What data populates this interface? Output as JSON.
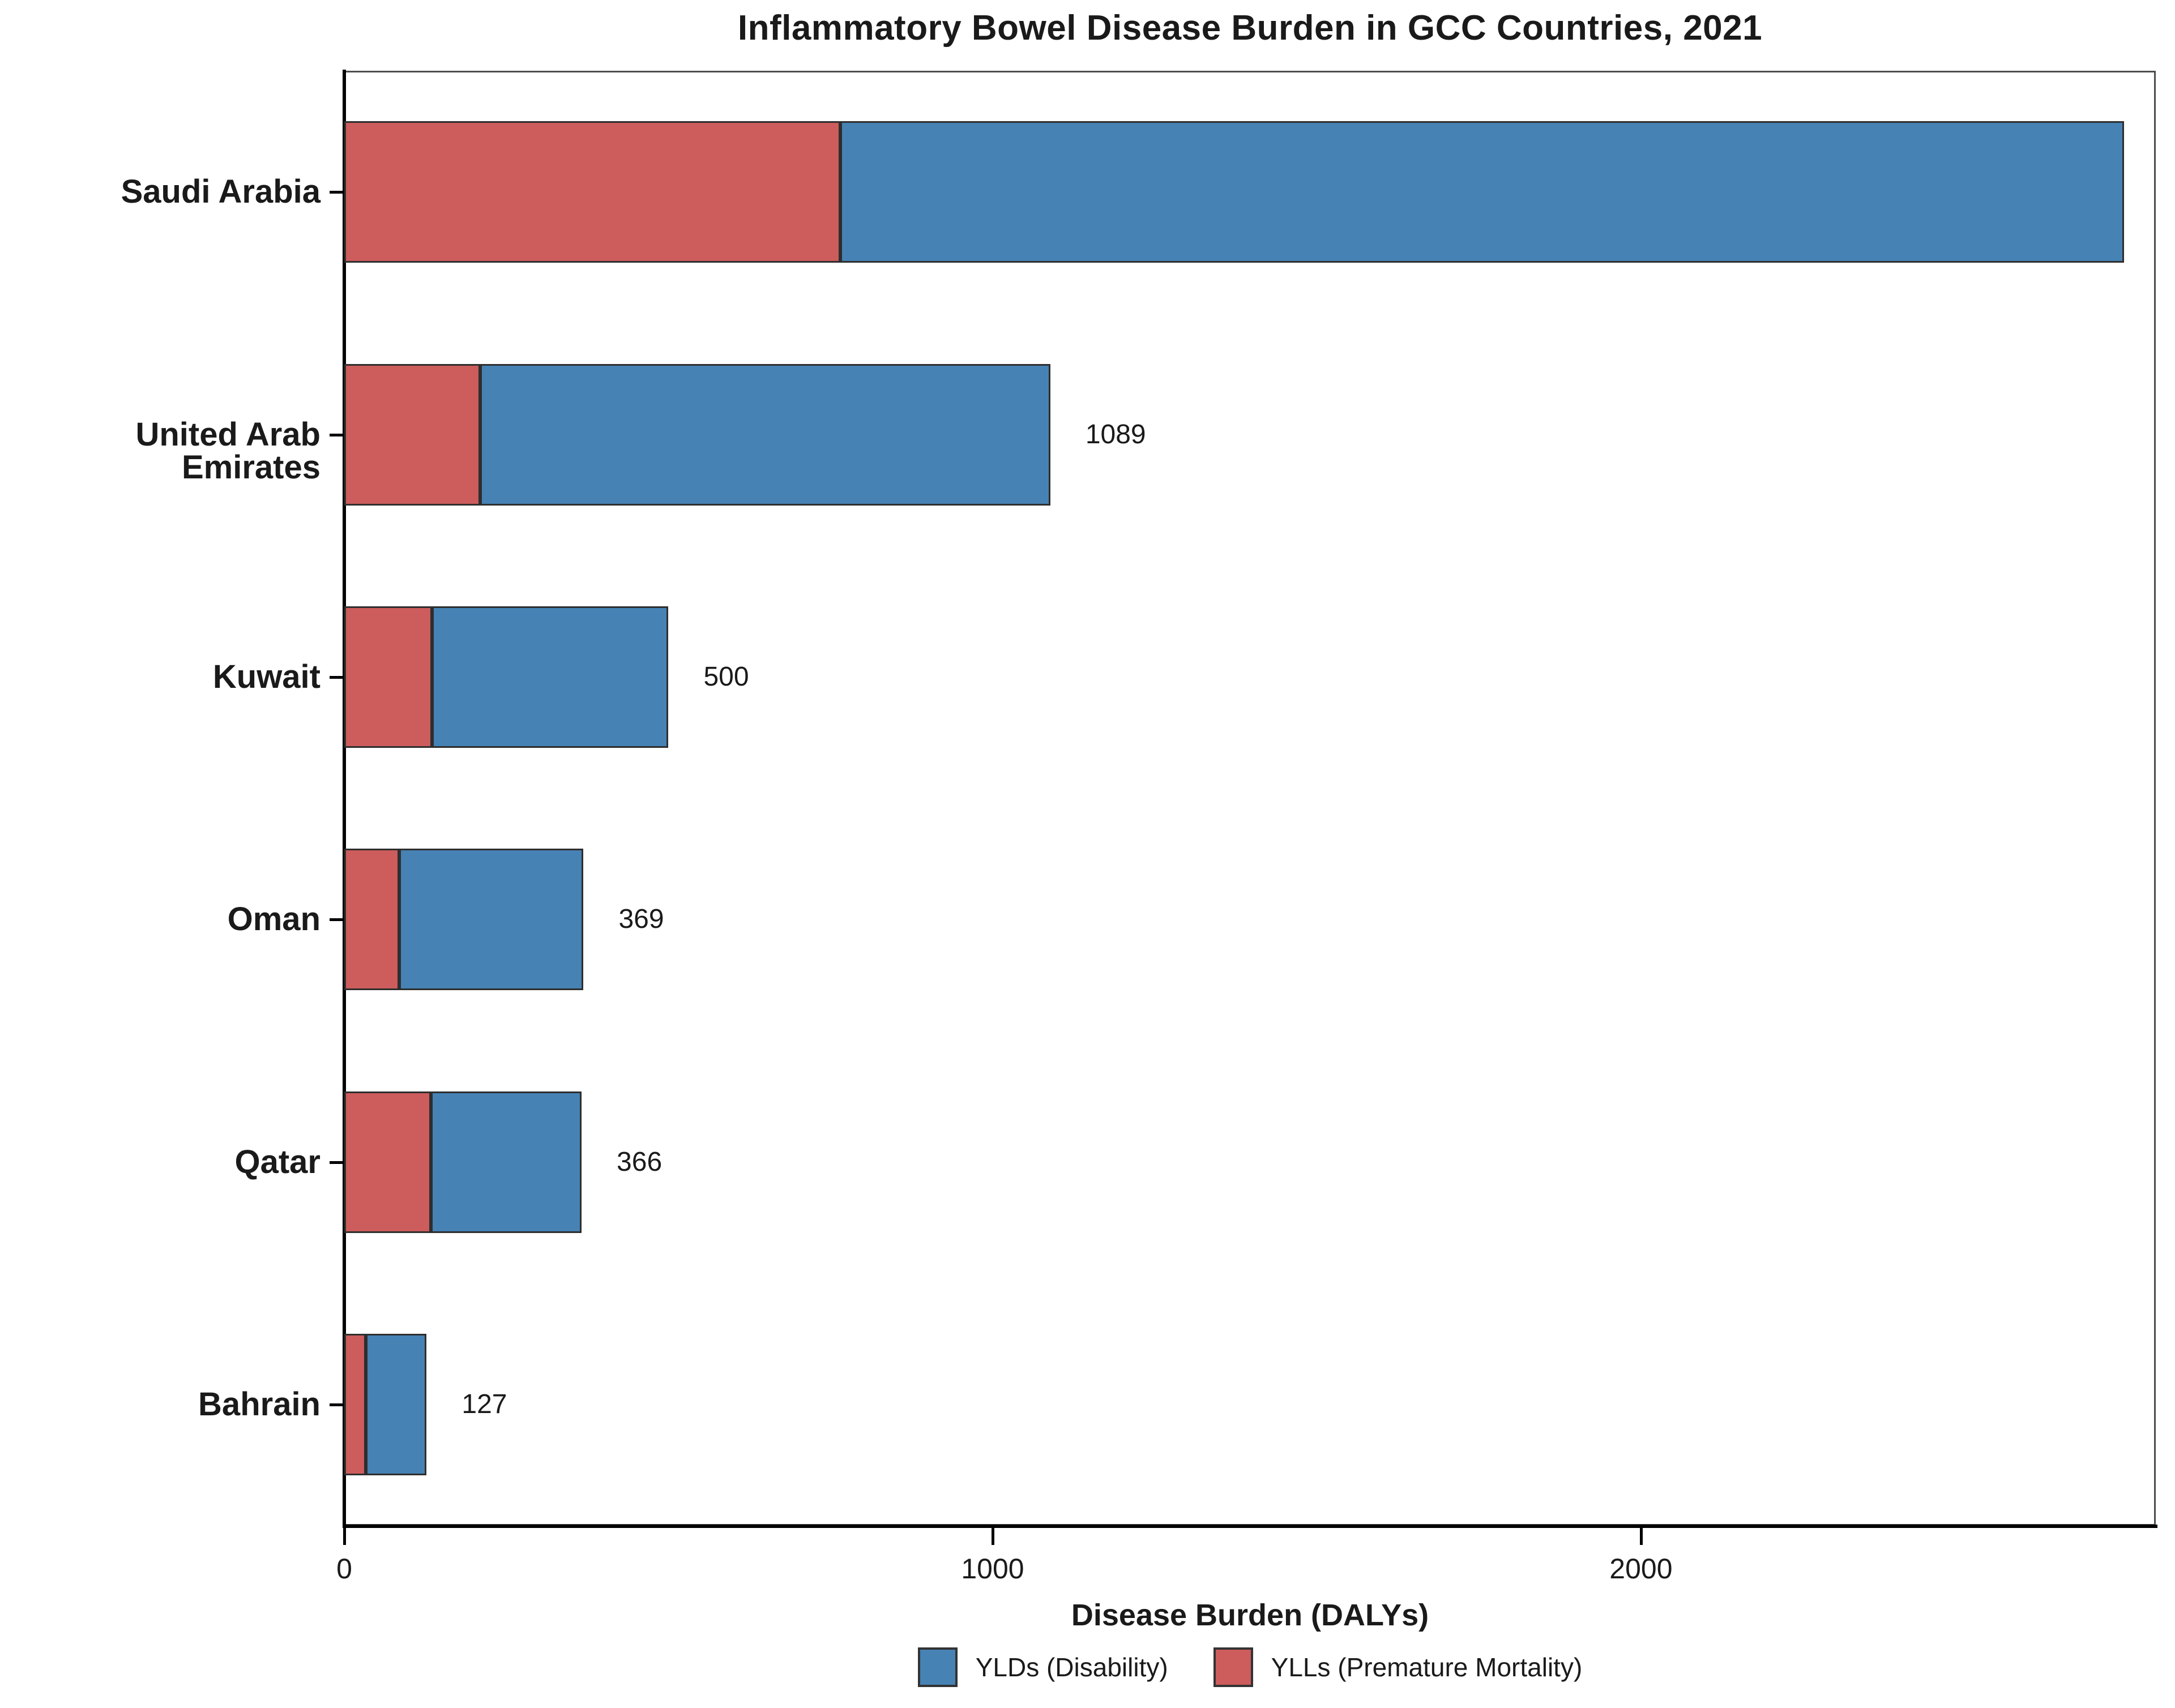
{
  "title": "Inflammatory Bowel Disease Burden in GCC Countries, 2021",
  "chart_data": {
    "type": "bar",
    "orientation": "horizontal",
    "stacked": true,
    "title": "Inflammatory Bowel Disease Burden in GCC Countries, 2021",
    "categories": [
      "Saudi Arabia",
      "United Arab Emirates",
      "Kuwait",
      "Oman",
      "Qatar",
      "Bahrain"
    ],
    "series": [
      {
        "name": "YLLs (Premature Mortality)",
        "color": "#CD5C5C",
        "values": [
          765,
          210,
          135,
          85,
          134,
          33
        ]
      },
      {
        "name": "YLDs (Disability)",
        "color": "#4682B4",
        "values": [
          1980,
          879,
          365,
          284,
          232,
          94
        ]
      }
    ],
    "totals": [
      2745,
      1089,
      500,
      369,
      366,
      127
    ],
    "total_labels": [
      "",
      "1089",
      "500",
      "369",
      "366",
      "127"
    ],
    "xlabel": "Disease Burden (DALYs)",
    "x_ticks": [
      0,
      1000,
      2000
    ],
    "x_tick_labels": [
      "0",
      "1000",
      "2000"
    ],
    "xlim": [
      0,
      2794
    ],
    "grid": false,
    "legend_position": "bottom",
    "legend": [
      {
        "label": "YLDs (Disability)",
        "color": "#4682B4"
      },
      {
        "label": "YLLs (Premature Mortality)",
        "color": "#CD5C5C"
      }
    ],
    "colors": {
      "ylds_blue": "#4682B4",
      "ylls_red": "#CD5C5C",
      "bar_border": "#2e2e2e",
      "axis": "#000000",
      "panel_border": "#4d4d4d"
    }
  }
}
